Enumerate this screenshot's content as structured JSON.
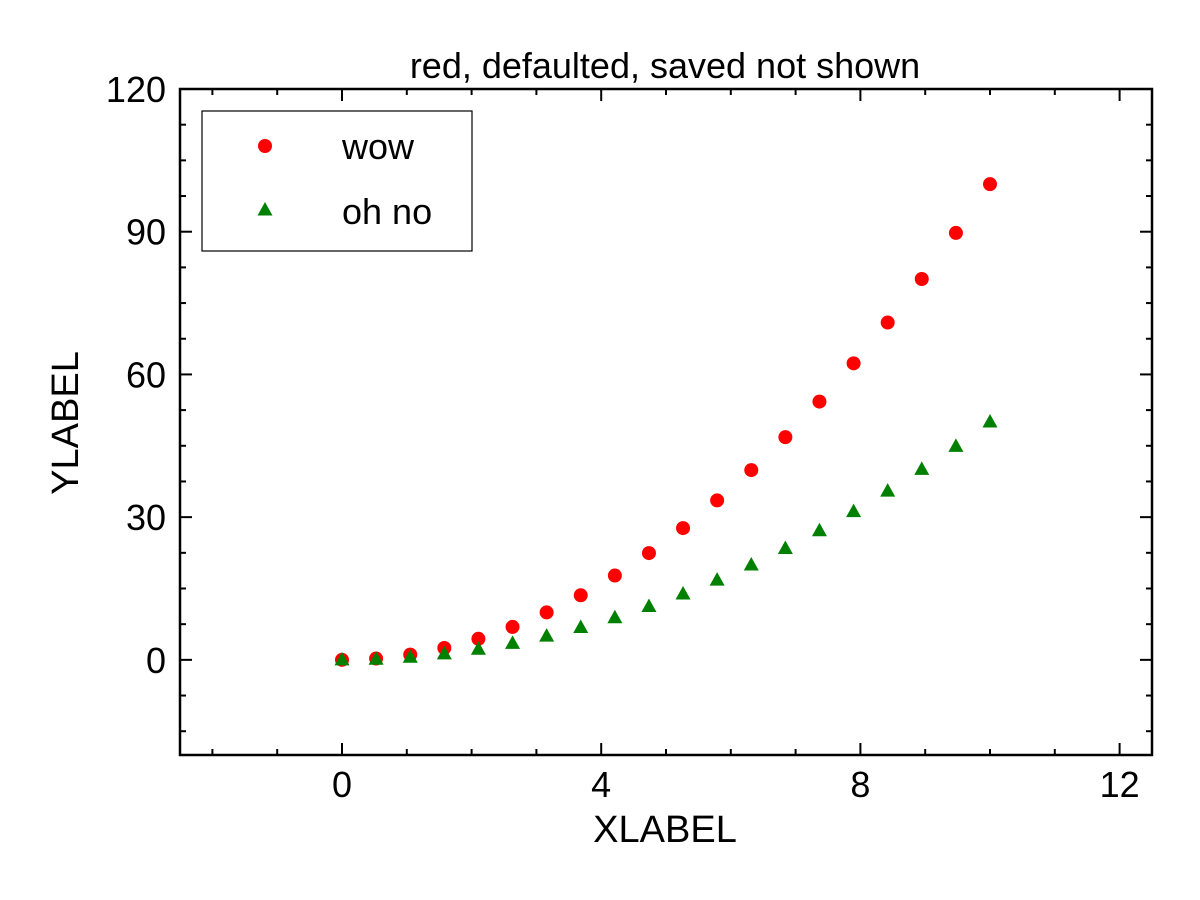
{
  "chart_data": {
    "type": "scatter",
    "title": "red, defaulted, saved not shown",
    "xlabel": "XLABEL",
    "ylabel": "YLABEL",
    "xlim": [
      -2.5,
      12.5
    ],
    "ylim": [
      -20,
      120
    ],
    "xticks": [
      0,
      4,
      8,
      12
    ],
    "yticks": [
      0,
      30,
      60,
      90,
      120
    ],
    "x_minor_step": 1,
    "y_minor_step": 7.5,
    "legend_position": "top-left",
    "series": [
      {
        "name": "wow",
        "color": "#ff0000",
        "marker": "circle",
        "x": [
          0,
          0.526,
          1.053,
          1.579,
          2.105,
          2.632,
          3.158,
          3.684,
          4.211,
          4.737,
          5.263,
          5.789,
          6.316,
          6.842,
          7.368,
          7.895,
          8.421,
          8.947,
          9.474,
          10
        ],
        "y": [
          0,
          0.28,
          1.11,
          2.49,
          4.43,
          6.93,
          9.97,
          13.57,
          17.73,
          22.44,
          27.7,
          33.52,
          39.89,
          46.81,
          54.29,
          62.33,
          70.91,
          80.06,
          89.75,
          100
        ]
      },
      {
        "name": "oh no",
        "color": "#008000",
        "marker": "triangle",
        "x": [
          0,
          0.526,
          1.053,
          1.579,
          2.105,
          2.632,
          3.158,
          3.684,
          4.211,
          4.737,
          5.263,
          5.789,
          6.316,
          6.842,
          7.368,
          7.895,
          8.421,
          8.947,
          9.474,
          10
        ],
        "y": [
          0,
          0.14,
          0.55,
          1.25,
          2.22,
          3.46,
          4.99,
          6.79,
          8.86,
          11.22,
          13.85,
          16.76,
          19.94,
          23.41,
          27.15,
          31.16,
          35.46,
          40.03,
          44.88,
          50
        ]
      }
    ]
  }
}
